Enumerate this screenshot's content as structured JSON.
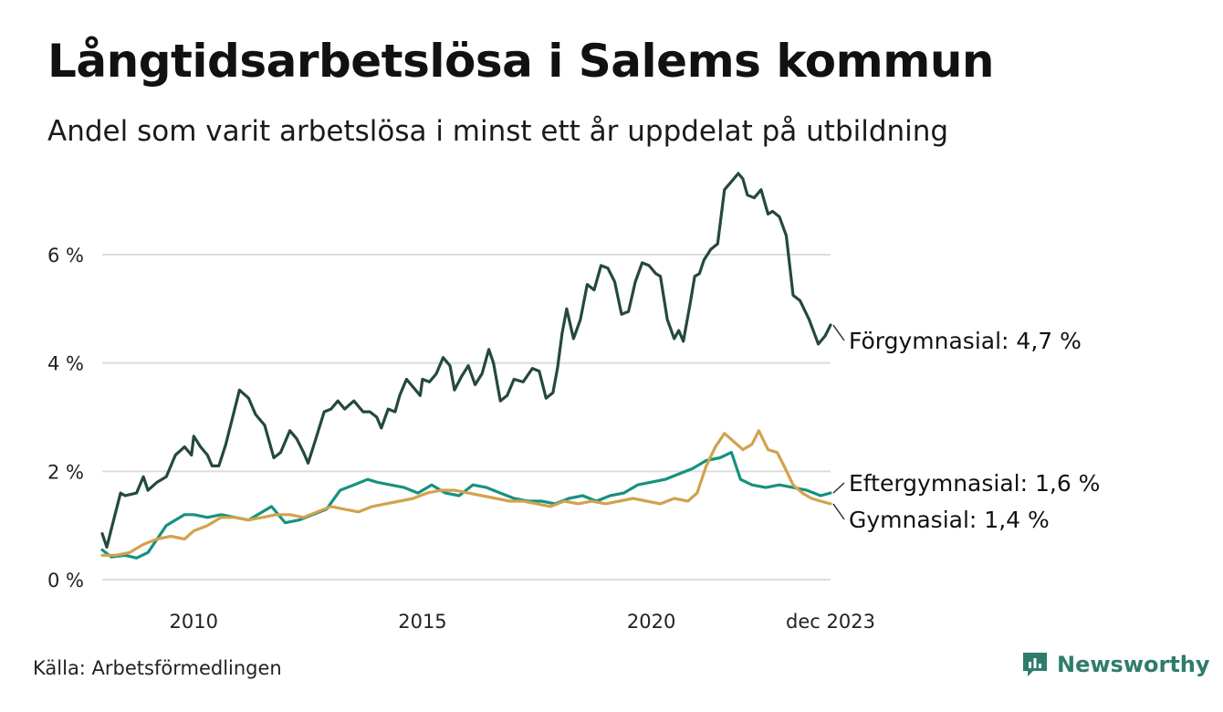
{
  "title": "Långtidsarbetslösa i Salems kommun",
  "subtitle": "Andel som varit arbetslösa i minst ett år uppdelat på utbildning",
  "source": "Källa: Arbetsförmedlingen",
  "brand": {
    "name": "Newsworthy",
    "icon": "newsworthy-logo-icon"
  },
  "colors": {
    "forgymnasial": "#24493f",
    "eftergymnasial": "#16917f",
    "gymnasial": "#d2a24c",
    "grid": "#dcdcdc",
    "brand": "#2e7d6b"
  },
  "chart_data": {
    "type": "line",
    "title": "Långtidsarbetslösa i Salems kommun",
    "xlabel": "",
    "ylabel": "",
    "ylim": [
      0,
      7.5
    ],
    "xlim": [
      2008.0,
      2023.917
    ],
    "x_ticks": [
      {
        "value": 2010,
        "label": "2010"
      },
      {
        "value": 2015,
        "label": "2015"
      },
      {
        "value": 2020,
        "label": "2020"
      },
      {
        "value": 2023.917,
        "label": "dec 2023"
      }
    ],
    "y_ticks": [
      {
        "value": 0,
        "label": "0 %"
      },
      {
        "value": 2,
        "label": "2 %"
      },
      {
        "value": 4,
        "label": "4 %"
      },
      {
        "value": 6,
        "label": "6 %"
      }
    ],
    "grid": true,
    "legend": "end-labels",
    "series": [
      {
        "name": "Förgymnasial",
        "end_label": "Förgymnasial: 4,7 %",
        "color_key": "forgymnasial",
        "points": [
          [
            2008.0,
            0.85
          ],
          [
            2008.1,
            0.6
          ],
          [
            2008.25,
            1.1
          ],
          [
            2008.4,
            1.6
          ],
          [
            2008.5,
            1.55
          ],
          [
            2008.75,
            1.6
          ],
          [
            2008.9,
            1.9
          ],
          [
            2009.0,
            1.65
          ],
          [
            2009.2,
            1.8
          ],
          [
            2009.4,
            1.9
          ],
          [
            2009.6,
            2.3
          ],
          [
            2009.8,
            2.45
          ],
          [
            2009.95,
            2.3
          ],
          [
            2010.0,
            2.65
          ],
          [
            2010.15,
            2.45
          ],
          [
            2010.3,
            2.3
          ],
          [
            2010.4,
            2.1
          ],
          [
            2010.55,
            2.1
          ],
          [
            2010.7,
            2.5
          ],
          [
            2010.85,
            3.0
          ],
          [
            2011.0,
            3.5
          ],
          [
            2011.2,
            3.35
          ],
          [
            2011.35,
            3.05
          ],
          [
            2011.55,
            2.85
          ],
          [
            2011.75,
            2.25
          ],
          [
            2011.9,
            2.35
          ],
          [
            2012.1,
            2.75
          ],
          [
            2012.25,
            2.6
          ],
          [
            2012.4,
            2.35
          ],
          [
            2012.5,
            2.15
          ],
          [
            2012.65,
            2.55
          ],
          [
            2012.85,
            3.1
          ],
          [
            2013.0,
            3.15
          ],
          [
            2013.15,
            3.3
          ],
          [
            2013.3,
            3.15
          ],
          [
            2013.5,
            3.3
          ],
          [
            2013.7,
            3.1
          ],
          [
            2013.85,
            3.1
          ],
          [
            2014.0,
            3.0
          ],
          [
            2014.1,
            2.8
          ],
          [
            2014.25,
            3.15
          ],
          [
            2014.4,
            3.1
          ],
          [
            2014.5,
            3.4
          ],
          [
            2014.65,
            3.7
          ],
          [
            2014.8,
            3.55
          ],
          [
            2014.95,
            3.4
          ],
          [
            2015.0,
            3.7
          ],
          [
            2015.15,
            3.65
          ],
          [
            2015.3,
            3.8
          ],
          [
            2015.45,
            4.1
          ],
          [
            2015.6,
            3.95
          ],
          [
            2015.7,
            3.5
          ],
          [
            2015.85,
            3.75
          ],
          [
            2016.0,
            3.95
          ],
          [
            2016.15,
            3.6
          ],
          [
            2016.3,
            3.8
          ],
          [
            2016.45,
            4.25
          ],
          [
            2016.55,
            4.0
          ],
          [
            2016.7,
            3.3
          ],
          [
            2016.85,
            3.4
          ],
          [
            2017.0,
            3.7
          ],
          [
            2017.2,
            3.65
          ],
          [
            2017.4,
            3.9
          ],
          [
            2017.55,
            3.85
          ],
          [
            2017.7,
            3.35
          ],
          [
            2017.85,
            3.45
          ],
          [
            2017.95,
            3.9
          ],
          [
            2018.05,
            4.55
          ],
          [
            2018.15,
            5.0
          ],
          [
            2018.3,
            4.45
          ],
          [
            2018.45,
            4.8
          ],
          [
            2018.6,
            5.45
          ],
          [
            2018.75,
            5.35
          ],
          [
            2018.9,
            5.8
          ],
          [
            2019.05,
            5.75
          ],
          [
            2019.2,
            5.5
          ],
          [
            2019.35,
            4.9
          ],
          [
            2019.5,
            4.95
          ],
          [
            2019.65,
            5.5
          ],
          [
            2019.8,
            5.85
          ],
          [
            2019.95,
            5.8
          ],
          [
            2020.1,
            5.65
          ],
          [
            2020.2,
            5.6
          ],
          [
            2020.35,
            4.8
          ],
          [
            2020.5,
            4.45
          ],
          [
            2020.6,
            4.6
          ],
          [
            2020.7,
            4.4
          ],
          [
            2020.85,
            5.1
          ],
          [
            2020.95,
            5.6
          ],
          [
            2021.05,
            5.65
          ],
          [
            2021.15,
            5.9
          ],
          [
            2021.3,
            6.1
          ],
          [
            2021.45,
            6.2
          ],
          [
            2021.6,
            7.2
          ],
          [
            2021.75,
            7.35
          ],
          [
            2021.9,
            7.5
          ],
          [
            2022.0,
            7.4
          ],
          [
            2022.1,
            7.1
          ],
          [
            2022.25,
            7.05
          ],
          [
            2022.4,
            7.2
          ],
          [
            2022.55,
            6.75
          ],
          [
            2022.65,
            6.8
          ],
          [
            2022.8,
            6.7
          ],
          [
            2022.95,
            6.35
          ],
          [
            2023.1,
            5.25
          ],
          [
            2023.25,
            5.15
          ],
          [
            2023.45,
            4.8
          ],
          [
            2023.65,
            4.35
          ],
          [
            2023.8,
            4.5
          ],
          [
            2023.917,
            4.7
          ]
        ]
      },
      {
        "name": "Eftergymnasial",
        "end_label": "Eftergymnasial: 1,6 %",
        "color_key": "eftergymnasial",
        "points": [
          [
            2008.0,
            0.55
          ],
          [
            2008.2,
            0.42
          ],
          [
            2008.5,
            0.45
          ],
          [
            2008.75,
            0.4
          ],
          [
            2009.0,
            0.5
          ],
          [
            2009.2,
            0.75
          ],
          [
            2009.4,
            1.0
          ],
          [
            2009.6,
            1.1
          ],
          [
            2009.8,
            1.2
          ],
          [
            2010.0,
            1.2
          ],
          [
            2010.3,
            1.15
          ],
          [
            2010.6,
            1.2
          ],
          [
            2010.9,
            1.15
          ],
          [
            2011.2,
            1.1
          ],
          [
            2011.5,
            1.25
          ],
          [
            2011.7,
            1.35
          ],
          [
            2012.0,
            1.05
          ],
          [
            2012.3,
            1.1
          ],
          [
            2012.6,
            1.2
          ],
          [
            2012.9,
            1.3
          ],
          [
            2013.2,
            1.65
          ],
          [
            2013.5,
            1.75
          ],
          [
            2013.8,
            1.85
          ],
          [
            2014.0,
            1.8
          ],
          [
            2014.3,
            1.75
          ],
          [
            2014.6,
            1.7
          ],
          [
            2014.9,
            1.6
          ],
          [
            2015.2,
            1.75
          ],
          [
            2015.5,
            1.6
          ],
          [
            2015.8,
            1.55
          ],
          [
            2016.1,
            1.75
          ],
          [
            2016.4,
            1.7
          ],
          [
            2016.7,
            1.6
          ],
          [
            2017.0,
            1.5
          ],
          [
            2017.3,
            1.45
          ],
          [
            2017.6,
            1.45
          ],
          [
            2017.9,
            1.4
          ],
          [
            2018.2,
            1.5
          ],
          [
            2018.5,
            1.55
          ],
          [
            2018.8,
            1.45
          ],
          [
            2019.1,
            1.55
          ],
          [
            2019.4,
            1.6
          ],
          [
            2019.7,
            1.75
          ],
          [
            2020.0,
            1.8
          ],
          [
            2020.3,
            1.85
          ],
          [
            2020.6,
            1.95
          ],
          [
            2020.9,
            2.05
          ],
          [
            2021.2,
            2.2
          ],
          [
            2021.5,
            2.25
          ],
          [
            2021.75,
            2.35
          ],
          [
            2021.95,
            1.85
          ],
          [
            2022.2,
            1.75
          ],
          [
            2022.5,
            1.7
          ],
          [
            2022.8,
            1.75
          ],
          [
            2023.1,
            1.7
          ],
          [
            2023.4,
            1.65
          ],
          [
            2023.7,
            1.55
          ],
          [
            2023.917,
            1.6
          ]
        ]
      },
      {
        "name": "Gymnasial",
        "end_label": "Gymnasial: 1,4 %",
        "color_key": "gymnasial",
        "points": [
          [
            2008.0,
            0.45
          ],
          [
            2008.3,
            0.45
          ],
          [
            2008.6,
            0.5
          ],
          [
            2008.9,
            0.65
          ],
          [
            2009.2,
            0.75
          ],
          [
            2009.5,
            0.8
          ],
          [
            2009.8,
            0.75
          ],
          [
            2010.0,
            0.9
          ],
          [
            2010.3,
            1.0
          ],
          [
            2010.6,
            1.15
          ],
          [
            2010.9,
            1.15
          ],
          [
            2011.2,
            1.1
          ],
          [
            2011.5,
            1.15
          ],
          [
            2011.8,
            1.2
          ],
          [
            2012.1,
            1.2
          ],
          [
            2012.4,
            1.15
          ],
          [
            2012.7,
            1.25
          ],
          [
            2013.0,
            1.35
          ],
          [
            2013.3,
            1.3
          ],
          [
            2013.6,
            1.25
          ],
          [
            2013.9,
            1.35
          ],
          [
            2014.2,
            1.4
          ],
          [
            2014.5,
            1.45
          ],
          [
            2014.8,
            1.5
          ],
          [
            2015.1,
            1.6
          ],
          [
            2015.4,
            1.65
          ],
          [
            2015.7,
            1.65
          ],
          [
            2016.0,
            1.6
          ],
          [
            2016.3,
            1.55
          ],
          [
            2016.6,
            1.5
          ],
          [
            2016.9,
            1.45
          ],
          [
            2017.2,
            1.45
          ],
          [
            2017.5,
            1.4
          ],
          [
            2017.8,
            1.35
          ],
          [
            2018.1,
            1.45
          ],
          [
            2018.4,
            1.4
          ],
          [
            2018.7,
            1.45
          ],
          [
            2019.0,
            1.4
          ],
          [
            2019.3,
            1.45
          ],
          [
            2019.6,
            1.5
          ],
          [
            2019.9,
            1.45
          ],
          [
            2020.2,
            1.4
          ],
          [
            2020.5,
            1.5
          ],
          [
            2020.8,
            1.45
          ],
          [
            2021.0,
            1.6
          ],
          [
            2021.2,
            2.1
          ],
          [
            2021.4,
            2.45
          ],
          [
            2021.6,
            2.7
          ],
          [
            2021.8,
            2.55
          ],
          [
            2022.0,
            2.4
          ],
          [
            2022.2,
            2.5
          ],
          [
            2022.35,
            2.75
          ],
          [
            2022.55,
            2.4
          ],
          [
            2022.75,
            2.35
          ],
          [
            2022.9,
            2.1
          ],
          [
            2023.1,
            1.75
          ],
          [
            2023.3,
            1.6
          ],
          [
            2023.5,
            1.5
          ],
          [
            2023.7,
            1.45
          ],
          [
            2023.917,
            1.4
          ]
        ]
      }
    ]
  }
}
